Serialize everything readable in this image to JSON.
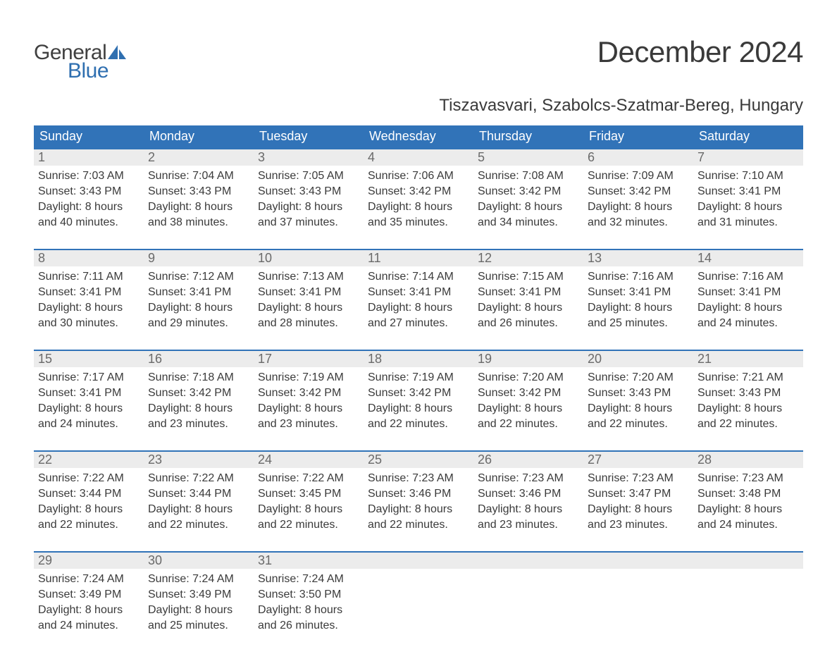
{
  "logo": {
    "text_general": "General",
    "text_blue": "Blue",
    "sail_color": "#2f6fb0"
  },
  "title": "December 2024",
  "location": "Tiszavasvari, Szabolcs-Szatmar-Bereg, Hungary",
  "colors": {
    "header_bg": "#3173b8",
    "header_text": "#ffffff",
    "week_divider": "#3173b8",
    "daynum_bg": "#ececec",
    "daynum_text": "#6a6a6a",
    "body_text": "#3a3a3a",
    "page_bg": "#ffffff"
  },
  "weekdays": [
    "Sunday",
    "Monday",
    "Tuesday",
    "Wednesday",
    "Thursday",
    "Friday",
    "Saturday"
  ],
  "weeks": [
    [
      {
        "num": "1",
        "sunrise": "Sunrise: 7:03 AM",
        "sunset": "Sunset: 3:43 PM",
        "dl1": "Daylight: 8 hours",
        "dl2": "and 40 minutes."
      },
      {
        "num": "2",
        "sunrise": "Sunrise: 7:04 AM",
        "sunset": "Sunset: 3:43 PM",
        "dl1": "Daylight: 8 hours",
        "dl2": "and 38 minutes."
      },
      {
        "num": "3",
        "sunrise": "Sunrise: 7:05 AM",
        "sunset": "Sunset: 3:43 PM",
        "dl1": "Daylight: 8 hours",
        "dl2": "and 37 minutes."
      },
      {
        "num": "4",
        "sunrise": "Sunrise: 7:06 AM",
        "sunset": "Sunset: 3:42 PM",
        "dl1": "Daylight: 8 hours",
        "dl2": "and 35 minutes."
      },
      {
        "num": "5",
        "sunrise": "Sunrise: 7:08 AM",
        "sunset": "Sunset: 3:42 PM",
        "dl1": "Daylight: 8 hours",
        "dl2": "and 34 minutes."
      },
      {
        "num": "6",
        "sunrise": "Sunrise: 7:09 AM",
        "sunset": "Sunset: 3:42 PM",
        "dl1": "Daylight: 8 hours",
        "dl2": "and 32 minutes."
      },
      {
        "num": "7",
        "sunrise": "Sunrise: 7:10 AM",
        "sunset": "Sunset: 3:41 PM",
        "dl1": "Daylight: 8 hours",
        "dl2": "and 31 minutes."
      }
    ],
    [
      {
        "num": "8",
        "sunrise": "Sunrise: 7:11 AM",
        "sunset": "Sunset: 3:41 PM",
        "dl1": "Daylight: 8 hours",
        "dl2": "and 30 minutes."
      },
      {
        "num": "9",
        "sunrise": "Sunrise: 7:12 AM",
        "sunset": "Sunset: 3:41 PM",
        "dl1": "Daylight: 8 hours",
        "dl2": "and 29 minutes."
      },
      {
        "num": "10",
        "sunrise": "Sunrise: 7:13 AM",
        "sunset": "Sunset: 3:41 PM",
        "dl1": "Daylight: 8 hours",
        "dl2": "and 28 minutes."
      },
      {
        "num": "11",
        "sunrise": "Sunrise: 7:14 AM",
        "sunset": "Sunset: 3:41 PM",
        "dl1": "Daylight: 8 hours",
        "dl2": "and 27 minutes."
      },
      {
        "num": "12",
        "sunrise": "Sunrise: 7:15 AM",
        "sunset": "Sunset: 3:41 PM",
        "dl1": "Daylight: 8 hours",
        "dl2": "and 26 minutes."
      },
      {
        "num": "13",
        "sunrise": "Sunrise: 7:16 AM",
        "sunset": "Sunset: 3:41 PM",
        "dl1": "Daylight: 8 hours",
        "dl2": "and 25 minutes."
      },
      {
        "num": "14",
        "sunrise": "Sunrise: 7:16 AM",
        "sunset": "Sunset: 3:41 PM",
        "dl1": "Daylight: 8 hours",
        "dl2": "and 24 minutes."
      }
    ],
    [
      {
        "num": "15",
        "sunrise": "Sunrise: 7:17 AM",
        "sunset": "Sunset: 3:41 PM",
        "dl1": "Daylight: 8 hours",
        "dl2": "and 24 minutes."
      },
      {
        "num": "16",
        "sunrise": "Sunrise: 7:18 AM",
        "sunset": "Sunset: 3:42 PM",
        "dl1": "Daylight: 8 hours",
        "dl2": "and 23 minutes."
      },
      {
        "num": "17",
        "sunrise": "Sunrise: 7:19 AM",
        "sunset": "Sunset: 3:42 PM",
        "dl1": "Daylight: 8 hours",
        "dl2": "and 23 minutes."
      },
      {
        "num": "18",
        "sunrise": "Sunrise: 7:19 AM",
        "sunset": "Sunset: 3:42 PM",
        "dl1": "Daylight: 8 hours",
        "dl2": "and 22 minutes."
      },
      {
        "num": "19",
        "sunrise": "Sunrise: 7:20 AM",
        "sunset": "Sunset: 3:42 PM",
        "dl1": "Daylight: 8 hours",
        "dl2": "and 22 minutes."
      },
      {
        "num": "20",
        "sunrise": "Sunrise: 7:20 AM",
        "sunset": "Sunset: 3:43 PM",
        "dl1": "Daylight: 8 hours",
        "dl2": "and 22 minutes."
      },
      {
        "num": "21",
        "sunrise": "Sunrise: 7:21 AM",
        "sunset": "Sunset: 3:43 PM",
        "dl1": "Daylight: 8 hours",
        "dl2": "and 22 minutes."
      }
    ],
    [
      {
        "num": "22",
        "sunrise": "Sunrise: 7:22 AM",
        "sunset": "Sunset: 3:44 PM",
        "dl1": "Daylight: 8 hours",
        "dl2": "and 22 minutes."
      },
      {
        "num": "23",
        "sunrise": "Sunrise: 7:22 AM",
        "sunset": "Sunset: 3:44 PM",
        "dl1": "Daylight: 8 hours",
        "dl2": "and 22 minutes."
      },
      {
        "num": "24",
        "sunrise": "Sunrise: 7:22 AM",
        "sunset": "Sunset: 3:45 PM",
        "dl1": "Daylight: 8 hours",
        "dl2": "and 22 minutes."
      },
      {
        "num": "25",
        "sunrise": "Sunrise: 7:23 AM",
        "sunset": "Sunset: 3:46 PM",
        "dl1": "Daylight: 8 hours",
        "dl2": "and 22 minutes."
      },
      {
        "num": "26",
        "sunrise": "Sunrise: 7:23 AM",
        "sunset": "Sunset: 3:46 PM",
        "dl1": "Daylight: 8 hours",
        "dl2": "and 23 minutes."
      },
      {
        "num": "27",
        "sunrise": "Sunrise: 7:23 AM",
        "sunset": "Sunset: 3:47 PM",
        "dl1": "Daylight: 8 hours",
        "dl2": "and 23 minutes."
      },
      {
        "num": "28",
        "sunrise": "Sunrise: 7:23 AM",
        "sunset": "Sunset: 3:48 PM",
        "dl1": "Daylight: 8 hours",
        "dl2": "and 24 minutes."
      }
    ],
    [
      {
        "num": "29",
        "sunrise": "Sunrise: 7:24 AM",
        "sunset": "Sunset: 3:49 PM",
        "dl1": "Daylight: 8 hours",
        "dl2": "and 24 minutes."
      },
      {
        "num": "30",
        "sunrise": "Sunrise: 7:24 AM",
        "sunset": "Sunset: 3:49 PM",
        "dl1": "Daylight: 8 hours",
        "dl2": "and 25 minutes."
      },
      {
        "num": "31",
        "sunrise": "Sunrise: 7:24 AM",
        "sunset": "Sunset: 3:50 PM",
        "dl1": "Daylight: 8 hours",
        "dl2": "and 26 minutes."
      },
      {
        "empty": true
      },
      {
        "empty": true
      },
      {
        "empty": true
      },
      {
        "empty": true
      }
    ]
  ]
}
